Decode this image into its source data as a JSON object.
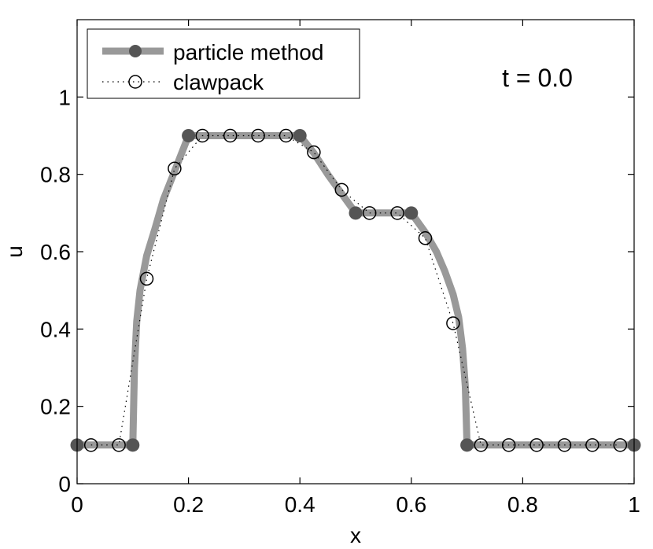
{
  "chart_data": {
    "type": "line",
    "xlabel": "x",
    "ylabel": "u",
    "xlim": [
      0,
      1
    ],
    "ylim": [
      0,
      1.2
    ],
    "x_ticks": [
      0,
      0.2,
      0.4,
      0.6,
      0.8,
      1
    ],
    "x_tick_labels": [
      "0",
      "0.2",
      "0.4",
      "0.6",
      "0.8",
      "1"
    ],
    "y_ticks": [
      0,
      0.2,
      0.4,
      0.6,
      0.8,
      1
    ],
    "y_tick_labels": [
      "0",
      "0.2",
      "0.4",
      "0.6",
      "0.8",
      "1"
    ],
    "annotation": "t = 0.0",
    "legend_position": "top-left",
    "grid": false,
    "series": [
      {
        "name": "particle method",
        "color": "#999999",
        "marker_color": "#555555",
        "style": "thick-solid-filled-markers",
        "curve": [
          [
            0.0,
            0.1
          ],
          [
            0.1,
            0.1
          ],
          [
            0.1,
            0.1
          ],
          [
            0.103,
            0.3
          ],
          [
            0.107,
            0.42
          ],
          [
            0.113,
            0.5
          ],
          [
            0.125,
            0.59
          ],
          [
            0.14,
            0.66
          ],
          [
            0.155,
            0.735
          ],
          [
            0.17,
            0.79
          ],
          [
            0.185,
            0.845
          ],
          [
            0.2,
            0.9
          ],
          [
            0.4,
            0.9
          ],
          [
            0.425,
            0.855
          ],
          [
            0.45,
            0.8
          ],
          [
            0.475,
            0.75
          ],
          [
            0.5,
            0.7
          ],
          [
            0.6,
            0.7
          ],
          [
            0.625,
            0.65
          ],
          [
            0.645,
            0.6
          ],
          [
            0.66,
            0.55
          ],
          [
            0.675,
            0.49
          ],
          [
            0.685,
            0.43
          ],
          [
            0.692,
            0.35
          ],
          [
            0.697,
            0.25
          ],
          [
            0.7,
            0.1
          ],
          [
            1.0,
            0.1
          ]
        ],
        "markers": [
          [
            0.0,
            0.1
          ],
          [
            0.1,
            0.1
          ],
          [
            0.2,
            0.9
          ],
          [
            0.4,
            0.9
          ],
          [
            0.5,
            0.7
          ],
          [
            0.6,
            0.7
          ],
          [
            0.7,
            0.1
          ],
          [
            1.0,
            0.1
          ]
        ]
      },
      {
        "name": "clawpack",
        "color": "#000000",
        "style": "dotted-open-circles",
        "x": [
          0.025,
          0.075,
          0.125,
          0.175,
          0.225,
          0.275,
          0.325,
          0.375,
          0.425,
          0.475,
          0.525,
          0.575,
          0.625,
          0.675,
          0.725,
          0.775,
          0.825,
          0.875,
          0.925,
          0.975
        ],
        "y": [
          0.1,
          0.1,
          0.53,
          0.815,
          0.9,
          0.9,
          0.9,
          0.9,
          0.857,
          0.76,
          0.7,
          0.7,
          0.635,
          0.415,
          0.1,
          0.1,
          0.1,
          0.1,
          0.1,
          0.1
        ]
      }
    ]
  }
}
